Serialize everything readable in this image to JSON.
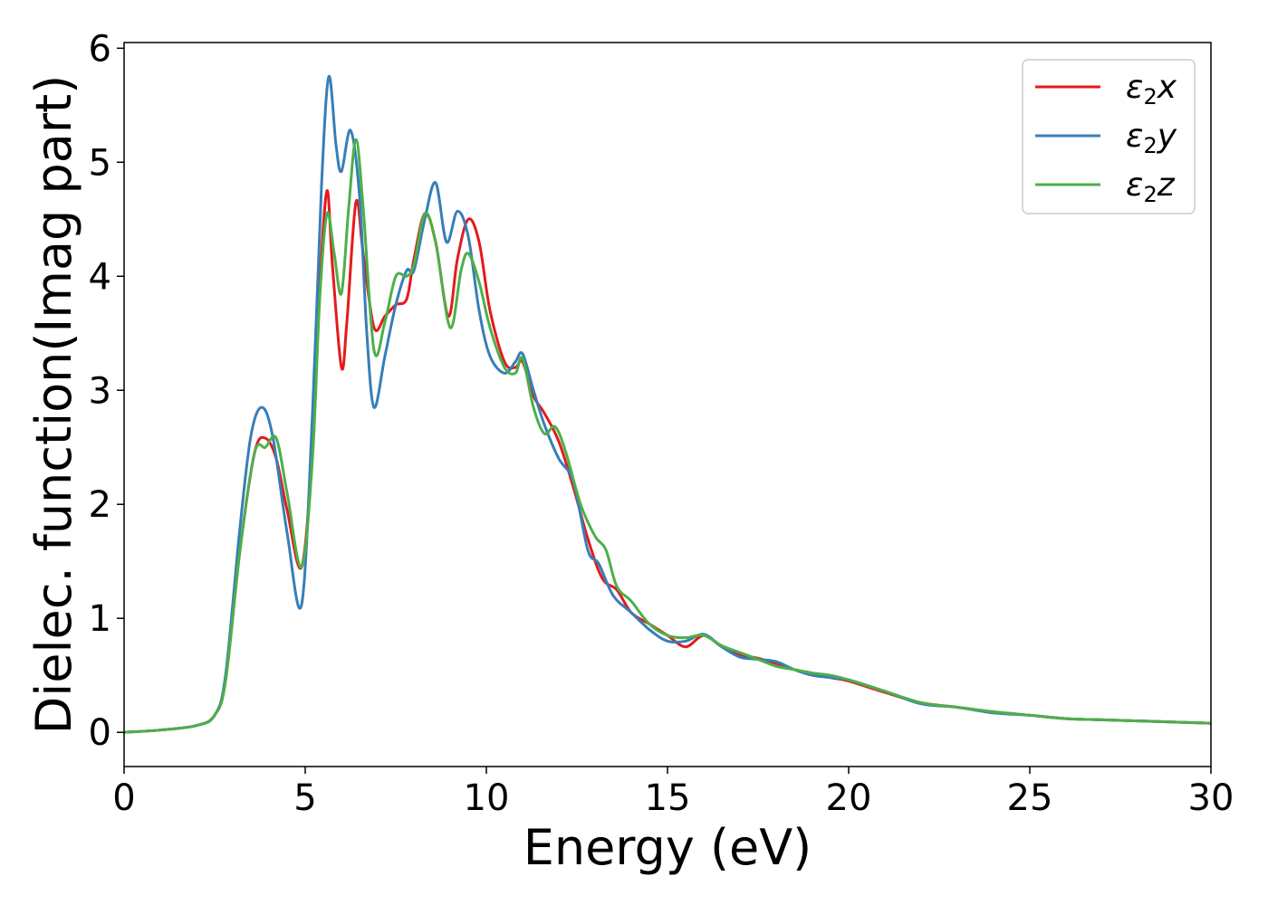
{
  "chart_data": {
    "type": "line",
    "title": "",
    "xlabel": "Energy (eV)",
    "ylabel": "Dielec. function(Imag part)",
    "xlim": [
      0,
      30
    ],
    "ylim": [
      -0.3,
      6.05
    ],
    "xticks": [
      0,
      5,
      10,
      15,
      20,
      25,
      30
    ],
    "yticks": [
      0,
      1,
      2,
      3,
      4,
      5,
      6
    ],
    "xtick_labels": [
      "0",
      "5",
      "10",
      "15",
      "20",
      "25",
      "30"
    ],
    "ytick_labels": [
      "0",
      "1",
      "2",
      "3",
      "4",
      "5",
      "6"
    ],
    "grid": false,
    "legend_position": "top-right",
    "series": [
      {
        "name": "ε2x",
        "legend": {
          "symbol": "ε",
          "sub": "2",
          "var": "x"
        },
        "color": "#e41a1c",
        "x": [
          0,
          1,
          2,
          2.5,
          2.8,
          3.2,
          3.6,
          3.9,
          4.2,
          4.5,
          4.9,
          5.2,
          5.4,
          5.6,
          5.75,
          6.0,
          6.15,
          6.4,
          6.6,
          6.9,
          7.2,
          7.5,
          7.8,
          8.0,
          8.3,
          8.6,
          8.95,
          9.2,
          9.5,
          9.8,
          10.1,
          10.5,
          10.8,
          11.0,
          11.3,
          11.6,
          12.0,
          12.4,
          12.8,
          13.2,
          13.6,
          14.0,
          14.5,
          15.0,
          15.5,
          16.0,
          16.5,
          17.0,
          17.5,
          18.0,
          18.5,
          19.0,
          19.5,
          20.0,
          21.0,
          22.0,
          23.0,
          24.0,
          25.0,
          26.0,
          27.0,
          28.0,
          29.0,
          30.0
        ],
        "values": [
          0.0,
          0.02,
          0.06,
          0.15,
          0.45,
          1.6,
          2.45,
          2.58,
          2.4,
          1.95,
          1.45,
          2.5,
          3.9,
          4.75,
          4.1,
          3.2,
          3.6,
          4.65,
          4.2,
          3.55,
          3.65,
          3.75,
          3.8,
          4.15,
          4.55,
          4.3,
          3.65,
          4.15,
          4.5,
          4.3,
          3.7,
          3.25,
          3.2,
          3.25,
          2.95,
          2.8,
          2.55,
          2.15,
          1.7,
          1.35,
          1.25,
          1.05,
          0.95,
          0.85,
          0.75,
          0.85,
          0.75,
          0.68,
          0.65,
          0.6,
          0.55,
          0.52,
          0.48,
          0.45,
          0.35,
          0.26,
          0.22,
          0.18,
          0.15,
          0.12,
          0.11,
          0.1,
          0.09,
          0.08
        ]
      },
      {
        "name": "ε2y",
        "legend": {
          "symbol": "ε",
          "sub": "2",
          "var": "y"
        },
        "color": "#377eb8",
        "x": [
          0,
          1,
          2,
          2.5,
          2.8,
          3.2,
          3.5,
          3.8,
          4.1,
          4.5,
          4.9,
          5.2,
          5.45,
          5.65,
          5.85,
          6.0,
          6.25,
          6.5,
          6.7,
          6.9,
          7.2,
          7.5,
          7.8,
          8.0,
          8.3,
          8.6,
          8.9,
          9.2,
          9.5,
          9.8,
          10.1,
          10.5,
          10.8,
          11.0,
          11.3,
          11.6,
          12.0,
          12.4,
          12.8,
          13.1,
          13.5,
          14.0,
          14.5,
          15.0,
          15.5,
          16.0,
          16.5,
          17.0,
          17.5,
          18.0,
          18.5,
          19.0,
          19.5,
          20.0,
          21.0,
          22.0,
          23.0,
          24.0,
          25.0,
          26.0,
          27.0,
          28.0,
          29.0,
          30.0
        ],
        "values": [
          0.0,
          0.02,
          0.06,
          0.15,
          0.5,
          1.8,
          2.6,
          2.85,
          2.6,
          1.75,
          1.12,
          2.8,
          4.8,
          5.75,
          5.15,
          4.92,
          5.28,
          4.7,
          3.5,
          2.85,
          3.3,
          3.75,
          4.05,
          4.05,
          4.5,
          4.82,
          4.3,
          4.57,
          4.35,
          3.7,
          3.3,
          3.15,
          3.25,
          3.32,
          3.0,
          2.7,
          2.4,
          2.2,
          1.6,
          1.48,
          1.2,
          1.05,
          0.9,
          0.8,
          0.8,
          0.86,
          0.75,
          0.66,
          0.64,
          0.62,
          0.55,
          0.5,
          0.48,
          0.46,
          0.36,
          0.25,
          0.22,
          0.17,
          0.15,
          0.12,
          0.11,
          0.1,
          0.09,
          0.08
        ]
      },
      {
        "name": "ε2z",
        "legend": {
          "symbol": "ε",
          "sub": "2",
          "var": "z"
        },
        "color": "#4daf4a",
        "x": [
          0,
          1,
          2,
          2.5,
          2.8,
          3.2,
          3.6,
          3.9,
          4.2,
          4.5,
          4.9,
          5.2,
          5.4,
          5.6,
          5.8,
          6.0,
          6.2,
          6.4,
          6.6,
          6.9,
          7.2,
          7.5,
          7.8,
          8.0,
          8.3,
          8.6,
          9.0,
          9.3,
          9.5,
          9.8,
          10.1,
          10.5,
          10.8,
          11.0,
          11.3,
          11.6,
          11.9,
          12.2,
          12.6,
          13.0,
          13.3,
          13.6,
          14.0,
          14.5,
          15.0,
          15.5,
          16.0,
          16.5,
          17.0,
          17.5,
          18.0,
          18.5,
          19.0,
          19.5,
          20.0,
          21.0,
          22.0,
          23.0,
          24.0,
          25.0,
          26.0,
          27.0,
          28.0,
          29.0,
          30.0
        ],
        "values": [
          0.0,
          0.02,
          0.06,
          0.15,
          0.45,
          1.6,
          2.45,
          2.5,
          2.58,
          2.1,
          1.45,
          2.4,
          3.8,
          4.55,
          4.2,
          3.85,
          4.6,
          5.2,
          4.6,
          3.35,
          3.6,
          4.0,
          4.0,
          4.1,
          4.55,
          4.3,
          3.55,
          4.05,
          4.2,
          3.95,
          3.55,
          3.2,
          3.15,
          3.28,
          2.85,
          2.62,
          2.68,
          2.45,
          2.0,
          1.72,
          1.6,
          1.28,
          1.15,
          0.95,
          0.85,
          0.83,
          0.85,
          0.76,
          0.7,
          0.64,
          0.58,
          0.55,
          0.52,
          0.5,
          0.46,
          0.36,
          0.26,
          0.22,
          0.18,
          0.15,
          0.12,
          0.11,
          0.1,
          0.09,
          0.08
        ]
      }
    ]
  }
}
